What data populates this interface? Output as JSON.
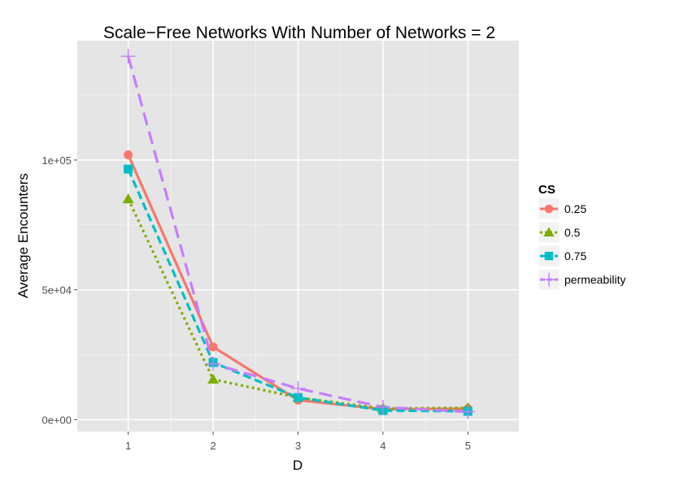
{
  "chart_data": {
    "type": "line",
    "title": "Scale−Free Networks With Number of Networks = 2",
    "xlabel": "D",
    "ylabel": "Average Encounters",
    "x": [
      1,
      2,
      3,
      4,
      5
    ],
    "x_ticks": [
      "1",
      "2",
      "3",
      "4",
      "5"
    ],
    "xlim": [
      0.4,
      5.6
    ],
    "y_ticks": [
      {
        "value": 0,
        "label": "0e+00"
      },
      {
        "value": 50000,
        "label": "5e+04"
      },
      {
        "value": 100000,
        "label": "1e+05"
      }
    ],
    "ylim": [
      -4600,
      146000
    ],
    "grid": true,
    "panel_background": "#e5e5e5",
    "legend_title": "CS",
    "legend_position": "right",
    "series": [
      {
        "name": "0.25",
        "color": "#F8766D",
        "marker": "circle",
        "dash": "solid",
        "values": [
          102000,
          28000,
          7500,
          4000,
          4200
        ]
      },
      {
        "name": "0.5",
        "color": "#7CAE00",
        "marker": "triangle",
        "dash": "dotted",
        "values": [
          85000,
          15500,
          8500,
          4300,
          4500
        ]
      },
      {
        "name": "0.75",
        "color": "#00BFC4",
        "marker": "square",
        "dash": "dashed",
        "values": [
          96500,
          22000,
          8500,
          3500,
          3200
        ]
      },
      {
        "name": "permeability",
        "color": "#C77CFF",
        "marker": "plus",
        "dash": "longdash",
        "values": [
          140000,
          21500,
          12000,
          4800,
          3000
        ]
      }
    ]
  }
}
